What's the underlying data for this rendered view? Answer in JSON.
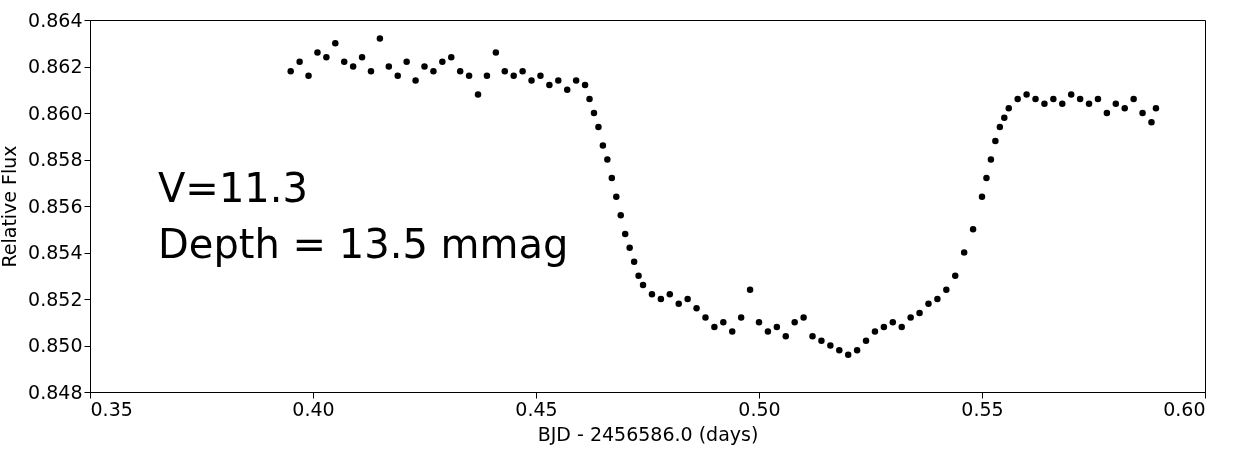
{
  "chart_data": {
    "type": "scatter",
    "xlabel": "BJD - 2456586.0 (days)",
    "ylabel": "Relative Flux",
    "marker": "circle",
    "annotations": [
      "V=11.3",
      "Depth = 13.5 mmag"
    ],
    "xlim": [
      0.35,
      0.6
    ],
    "xticks": [
      {
        "value": 0.35,
        "label": "0.35"
      },
      {
        "value": 0.4,
        "label": "0.40"
      },
      {
        "value": 0.45,
        "label": "0.45"
      },
      {
        "value": 0.5,
        "label": "0.50"
      },
      {
        "value": 0.55,
        "label": "0.55"
      },
      {
        "value": 0.6,
        "label": "0.60"
      }
    ],
    "ylim": [
      0.848,
      0.864
    ],
    "yticks": [
      0.848,
      {
        "value": 0.85,
        "label": "0.850"
      },
      0.852,
      0.854,
      0.856,
      0.858,
      {
        "value": 0.86,
        "label": "0.860"
      },
      0.862,
      0.864
    ],
    "series": [
      {
        "color": "#000000",
        "x": [
          0.395,
          0.397,
          0.399,
          0.401,
          0.403,
          0.405,
          0.407,
          0.409,
          0.411,
          0.413,
          0.415,
          0.417,
          0.419,
          0.421,
          0.423,
          0.425,
          0.427,
          0.429,
          0.431,
          0.433,
          0.435,
          0.437,
          0.439,
          0.441,
          0.443,
          0.445,
          0.447,
          0.449,
          0.451,
          0.453,
          0.455,
          0.457,
          0.459,
          0.461,
          0.462,
          0.463,
          0.464,
          0.465,
          0.466,
          0.467,
          0.468,
          0.469,
          0.47,
          0.471,
          0.472,
          0.473,
          0.474,
          0.476,
          0.478,
          0.48,
          0.482,
          0.484,
          0.486,
          0.488,
          0.49,
          0.492,
          0.494,
          0.496,
          0.498,
          0.5,
          0.502,
          0.504,
          0.506,
          0.508,
          0.51,
          0.512,
          0.514,
          0.516,
          0.518,
          0.52,
          0.522,
          0.524,
          0.526,
          0.528,
          0.53,
          0.532,
          0.534,
          0.536,
          0.538,
          0.54,
          0.542,
          0.544,
          0.546,
          0.548,
          0.55,
          0.551,
          0.552,
          0.553,
          0.554,
          0.555,
          0.556,
          0.558,
          0.56,
          0.562,
          0.564,
          0.566,
          0.568,
          0.57,
          0.572,
          0.574,
          0.576,
          0.578,
          0.58,
          0.582,
          0.584,
          0.586,
          0.588,
          0.589
        ],
        "values": [
          0.8618,
          0.8622,
          0.8616,
          0.8626,
          0.8624,
          0.863,
          0.8622,
          0.862,
          0.8624,
          0.8618,
          0.8632,
          0.862,
          0.8616,
          0.8622,
          0.8614,
          0.862,
          0.8618,
          0.8622,
          0.8624,
          0.8618,
          0.8616,
          0.8608,
          0.8616,
          0.8626,
          0.8618,
          0.8616,
          0.8618,
          0.8614,
          0.8616,
          0.8612,
          0.8614,
          0.861,
          0.8614,
          0.8612,
          0.8606,
          0.86,
          0.8594,
          0.8586,
          0.858,
          0.8572,
          0.8564,
          0.8556,
          0.8548,
          0.8542,
          0.8536,
          0.853,
          0.8526,
          0.8522,
          0.852,
          0.8522,
          0.8518,
          0.852,
          0.8516,
          0.8512,
          0.8508,
          0.851,
          0.8506,
          0.8512,
          0.8524,
          0.851,
          0.8506,
          0.8508,
          0.8504,
          0.851,
          0.8512,
          0.8504,
          0.8502,
          0.85,
          0.8498,
          0.8496,
          0.8498,
          0.8502,
          0.8506,
          0.8508,
          0.851,
          0.8508,
          0.8512,
          0.8514,
          0.8518,
          0.852,
          0.8524,
          0.853,
          0.854,
          0.855,
          0.8564,
          0.8572,
          0.858,
          0.8588,
          0.8594,
          0.8598,
          0.8602,
          0.8606,
          0.8608,
          0.8606,
          0.8604,
          0.8606,
          0.8604,
          0.8608,
          0.8606,
          0.8604,
          0.8606,
          0.86,
          0.8604,
          0.8602,
          0.8606,
          0.86,
          0.8596,
          0.8602
        ]
      }
    ]
  }
}
